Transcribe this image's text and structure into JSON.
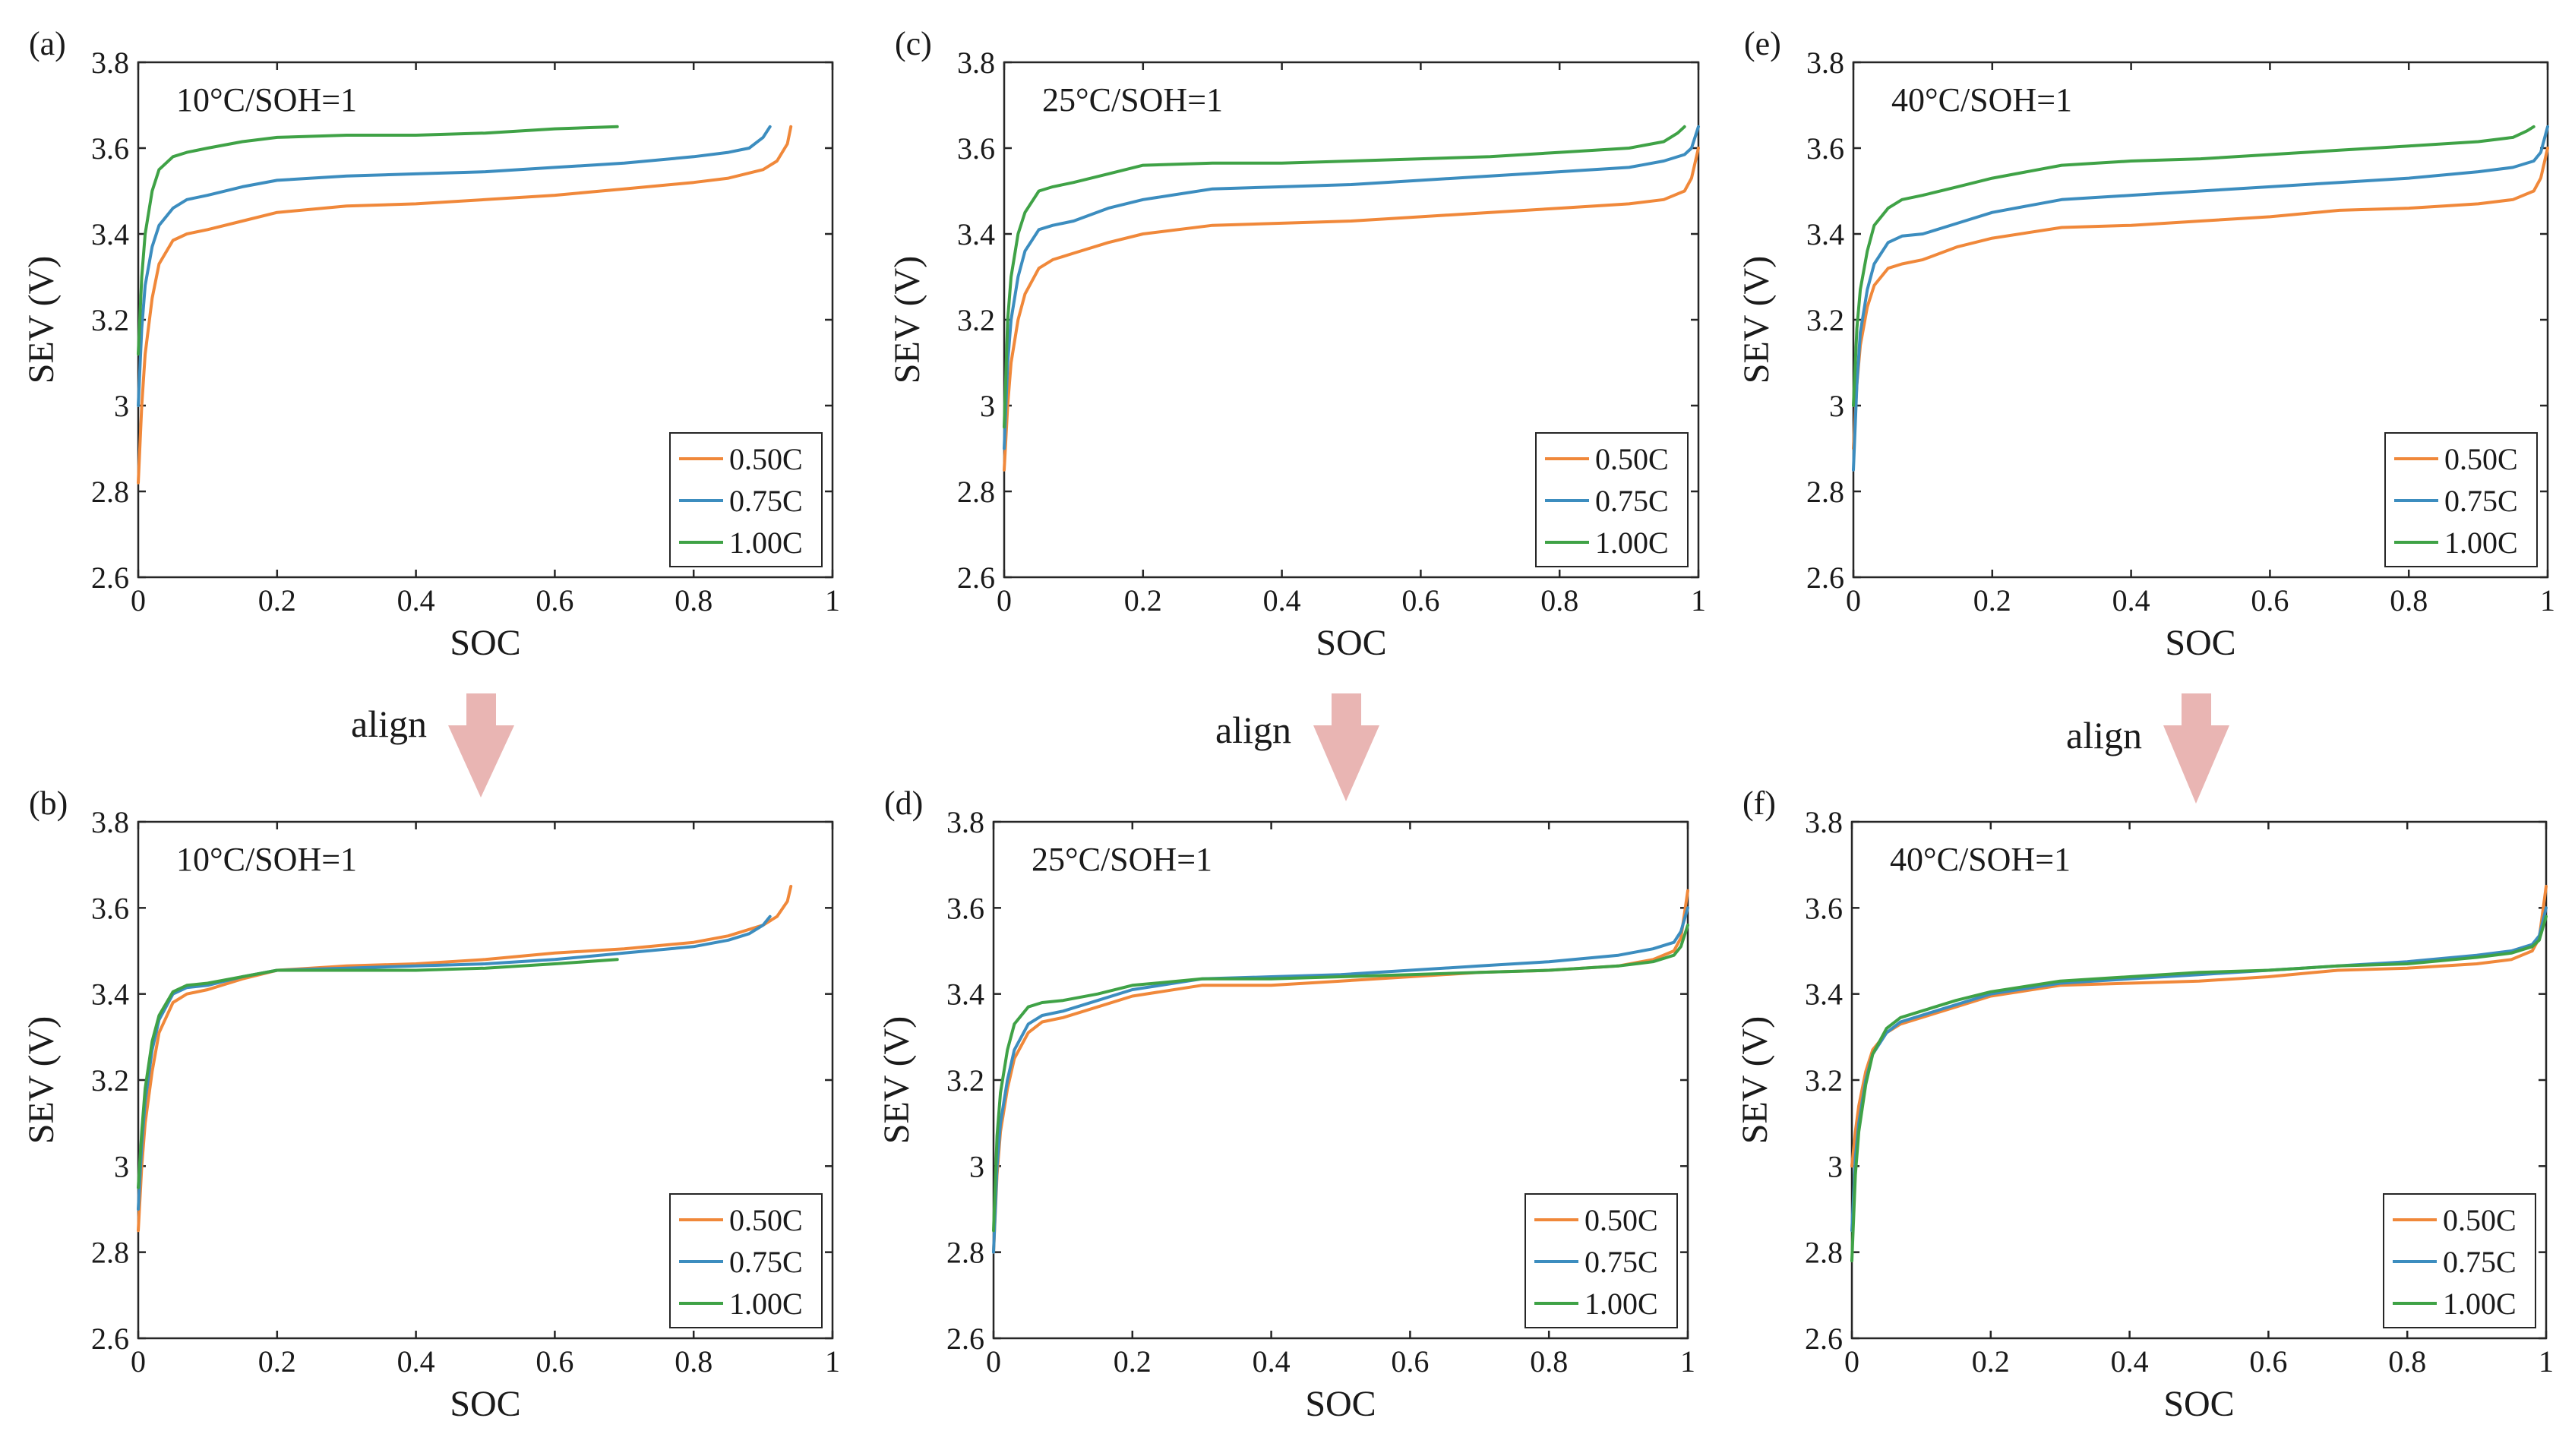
{
  "colors": {
    "c050": "#F0883A",
    "c075": "#3C8DBF",
    "c100": "#3FA246",
    "arrow": "#E9B5B3",
    "axis": "#262626"
  },
  "arrow_text": "align",
  "chart_data": [
    {
      "type": "line",
      "panel": "(a)",
      "annotation": "10°C/SOH=1",
      "xlabel": "SOC",
      "ylabel": "SEV (V)",
      "xlim": [
        0,
        1
      ],
      "ylim": [
        2.6,
        3.8
      ],
      "xticks": [
        "0",
        "0.2",
        "0.4",
        "0.6",
        "0.8",
        "1"
      ],
      "yticks": [
        "2.6",
        "2.8",
        "3",
        "3.2",
        "3.4",
        "3.6",
        "3.8"
      ],
      "legend_position": "bottom-right",
      "series": [
        {
          "name": "0.50C",
          "color": "#F0883A",
          "x": [
            0,
            0.005,
            0.01,
            0.02,
            0.03,
            0.05,
            0.07,
            0.1,
            0.15,
            0.2,
            0.3,
            0.4,
            0.5,
            0.6,
            0.7,
            0.8,
            0.85,
            0.9,
            0.92,
            0.935,
            0.94
          ],
          "y": [
            2.82,
            3.0,
            3.12,
            3.25,
            3.33,
            3.385,
            3.4,
            3.41,
            3.43,
            3.45,
            3.465,
            3.47,
            3.48,
            3.49,
            3.505,
            3.52,
            3.53,
            3.55,
            3.57,
            3.61,
            3.65
          ]
        },
        {
          "name": "0.75C",
          "color": "#3C8DBF",
          "x": [
            0,
            0.005,
            0.01,
            0.02,
            0.03,
            0.05,
            0.07,
            0.1,
            0.15,
            0.2,
            0.3,
            0.4,
            0.5,
            0.6,
            0.7,
            0.8,
            0.85,
            0.88,
            0.9,
            0.91
          ],
          "y": [
            3.0,
            3.18,
            3.28,
            3.37,
            3.42,
            3.46,
            3.48,
            3.49,
            3.51,
            3.525,
            3.535,
            3.54,
            3.545,
            3.555,
            3.565,
            3.58,
            3.59,
            3.6,
            3.625,
            3.65
          ]
        },
        {
          "name": "1.00C",
          "color": "#3FA246",
          "x": [
            0,
            0.005,
            0.01,
            0.02,
            0.03,
            0.05,
            0.07,
            0.1,
            0.15,
            0.2,
            0.3,
            0.4,
            0.5,
            0.6,
            0.69
          ],
          "y": [
            3.12,
            3.3,
            3.4,
            3.5,
            3.55,
            3.58,
            3.59,
            3.6,
            3.615,
            3.625,
            3.63,
            3.63,
            3.635,
            3.645,
            3.65
          ]
        }
      ]
    },
    {
      "type": "line",
      "panel": "(c)",
      "annotation": "25°C/SOH=1",
      "xlabel": "SOC",
      "ylabel": "SEV (V)",
      "xlim": [
        0,
        1
      ],
      "ylim": [
        2.6,
        3.8
      ],
      "xticks": [
        "0",
        "0.2",
        "0.4",
        "0.6",
        "0.8",
        "1"
      ],
      "yticks": [
        "2.6",
        "2.8",
        "3",
        "3.2",
        "3.4",
        "3.6",
        "3.8"
      ],
      "legend_position": "bottom-right",
      "series": [
        {
          "name": "0.50C",
          "color": "#F0883A",
          "x": [
            0,
            0.005,
            0.01,
            0.02,
            0.03,
            0.05,
            0.07,
            0.1,
            0.15,
            0.2,
            0.3,
            0.4,
            0.5,
            0.6,
            0.7,
            0.8,
            0.9,
            0.95,
            0.98,
            0.99,
            1.0
          ],
          "y": [
            2.85,
            3.0,
            3.1,
            3.2,
            3.26,
            3.32,
            3.34,
            3.355,
            3.38,
            3.4,
            3.42,
            3.425,
            3.43,
            3.44,
            3.45,
            3.46,
            3.47,
            3.48,
            3.5,
            3.53,
            3.6
          ]
        },
        {
          "name": "0.75C",
          "color": "#3C8DBF",
          "x": [
            0,
            0.005,
            0.01,
            0.02,
            0.03,
            0.05,
            0.07,
            0.1,
            0.15,
            0.2,
            0.3,
            0.4,
            0.5,
            0.6,
            0.7,
            0.8,
            0.9,
            0.95,
            0.98,
            0.99,
            1.0
          ],
          "y": [
            2.9,
            3.1,
            3.2,
            3.3,
            3.36,
            3.41,
            3.42,
            3.43,
            3.46,
            3.48,
            3.505,
            3.51,
            3.515,
            3.525,
            3.535,
            3.545,
            3.555,
            3.57,
            3.585,
            3.6,
            3.65
          ]
        },
        {
          "name": "1.00C",
          "color": "#3FA246",
          "x": [
            0,
            0.005,
            0.01,
            0.02,
            0.03,
            0.05,
            0.07,
            0.1,
            0.15,
            0.2,
            0.3,
            0.4,
            0.5,
            0.6,
            0.7,
            0.8,
            0.9,
            0.95,
            0.97,
            0.98
          ],
          "y": [
            2.95,
            3.2,
            3.3,
            3.4,
            3.45,
            3.5,
            3.51,
            3.52,
            3.54,
            3.56,
            3.565,
            3.565,
            3.57,
            3.575,
            3.58,
            3.59,
            3.6,
            3.615,
            3.635,
            3.65
          ]
        }
      ]
    },
    {
      "type": "line",
      "panel": "(e)",
      "annotation": "40°C/SOH=1",
      "xlabel": "SOC",
      "ylabel": "SEV (V)",
      "xlim": [
        0,
        1
      ],
      "ylim": [
        2.6,
        3.8
      ],
      "xticks": [
        "0",
        "0.2",
        "0.4",
        "0.6",
        "0.8",
        "1"
      ],
      "yticks": [
        "2.6",
        "2.8",
        "3",
        "3.2",
        "3.4",
        "3.6",
        "3.8"
      ],
      "legend_position": "bottom-right",
      "series": [
        {
          "name": "0.50C",
          "color": "#F0883A",
          "x": [
            0,
            0.005,
            0.01,
            0.02,
            0.03,
            0.05,
            0.07,
            0.1,
            0.15,
            0.2,
            0.3,
            0.4,
            0.5,
            0.6,
            0.7,
            0.8,
            0.9,
            0.95,
            0.98,
            0.99,
            1.0
          ],
          "y": [
            2.9,
            3.05,
            3.14,
            3.23,
            3.28,
            3.32,
            3.33,
            3.34,
            3.37,
            3.39,
            3.415,
            3.42,
            3.43,
            3.44,
            3.455,
            3.46,
            3.47,
            3.48,
            3.5,
            3.53,
            3.6
          ]
        },
        {
          "name": "0.75C",
          "color": "#3C8DBF",
          "x": [
            0,
            0.005,
            0.01,
            0.02,
            0.03,
            0.05,
            0.07,
            0.1,
            0.15,
            0.2,
            0.3,
            0.4,
            0.5,
            0.6,
            0.7,
            0.8,
            0.9,
            0.95,
            0.98,
            0.99,
            1.0
          ],
          "y": [
            2.85,
            3.05,
            3.17,
            3.27,
            3.33,
            3.38,
            3.395,
            3.4,
            3.425,
            3.45,
            3.48,
            3.49,
            3.5,
            3.51,
            3.52,
            3.53,
            3.545,
            3.555,
            3.57,
            3.59,
            3.65
          ]
        },
        {
          "name": "1.00C",
          "color": "#3FA246",
          "x": [
            0,
            0.005,
            0.01,
            0.02,
            0.03,
            0.05,
            0.07,
            0.1,
            0.15,
            0.2,
            0.3,
            0.4,
            0.5,
            0.6,
            0.7,
            0.8,
            0.9,
            0.95,
            0.97,
            0.98
          ],
          "y": [
            3.0,
            3.18,
            3.27,
            3.36,
            3.42,
            3.46,
            3.48,
            3.49,
            3.51,
            3.53,
            3.56,
            3.57,
            3.575,
            3.585,
            3.595,
            3.605,
            3.615,
            3.625,
            3.64,
            3.65
          ]
        }
      ]
    },
    {
      "type": "line",
      "panel": "(b)",
      "annotation": "10°C/SOH=1",
      "xlabel": "SOC",
      "ylabel": "SEV (V)",
      "xlim": [
        0,
        1
      ],
      "ylim": [
        2.6,
        3.8
      ],
      "xticks": [
        "0",
        "0.2",
        "0.4",
        "0.6",
        "0.8",
        "1"
      ],
      "yticks": [
        "2.6",
        "2.8",
        "3",
        "3.2",
        "3.4",
        "3.6",
        "3.8"
      ],
      "legend_position": "bottom-right",
      "series": [
        {
          "name": "0.50C",
          "color": "#F0883A",
          "x": [
            0,
            0.005,
            0.01,
            0.02,
            0.03,
            0.05,
            0.07,
            0.1,
            0.15,
            0.2,
            0.3,
            0.4,
            0.5,
            0.6,
            0.7,
            0.8,
            0.85,
            0.9,
            0.92,
            0.935,
            0.94
          ],
          "y": [
            2.85,
            3.0,
            3.1,
            3.22,
            3.31,
            3.38,
            3.4,
            3.41,
            3.435,
            3.455,
            3.465,
            3.47,
            3.48,
            3.495,
            3.505,
            3.52,
            3.535,
            3.56,
            3.58,
            3.615,
            3.65
          ]
        },
        {
          "name": "0.75C",
          "color": "#3C8DBF",
          "x": [
            0,
            0.005,
            0.01,
            0.02,
            0.03,
            0.05,
            0.07,
            0.1,
            0.15,
            0.2,
            0.3,
            0.4,
            0.5,
            0.6,
            0.7,
            0.8,
            0.85,
            0.88,
            0.9,
            0.91
          ],
          "y": [
            2.9,
            3.05,
            3.15,
            3.27,
            3.34,
            3.4,
            3.415,
            3.42,
            3.44,
            3.455,
            3.46,
            3.465,
            3.47,
            3.48,
            3.495,
            3.51,
            3.525,
            3.54,
            3.56,
            3.58
          ]
        },
        {
          "name": "1.00C",
          "color": "#3FA246",
          "x": [
            0,
            0.005,
            0.01,
            0.02,
            0.03,
            0.05,
            0.07,
            0.1,
            0.15,
            0.2,
            0.3,
            0.4,
            0.5,
            0.6,
            0.69
          ],
          "y": [
            2.95,
            3.08,
            3.18,
            3.29,
            3.35,
            3.405,
            3.42,
            3.425,
            3.44,
            3.455,
            3.455,
            3.455,
            3.46,
            3.47,
            3.48
          ]
        }
      ]
    },
    {
      "type": "line",
      "panel": "(d)",
      "annotation": "25°C/SOH=1",
      "xlabel": "SOC",
      "ylabel": "SEV (V)",
      "xlim": [
        0,
        1
      ],
      "ylim": [
        2.6,
        3.8
      ],
      "xticks": [
        "0",
        "0.2",
        "0.4",
        "0.6",
        "0.8",
        "1"
      ],
      "yticks": [
        "2.6",
        "2.8",
        "3",
        "3.2",
        "3.4",
        "3.6",
        "3.8"
      ],
      "legend_position": "bottom-right",
      "series": [
        {
          "name": "0.50C",
          "color": "#F0883A",
          "x": [
            0,
            0.005,
            0.01,
            0.02,
            0.03,
            0.05,
            0.07,
            0.1,
            0.15,
            0.2,
            0.3,
            0.4,
            0.5,
            0.6,
            0.7,
            0.8,
            0.9,
            0.95,
            0.98,
            0.99,
            1.0
          ],
          "y": [
            2.8,
            2.98,
            3.08,
            3.18,
            3.25,
            3.31,
            3.335,
            3.345,
            3.37,
            3.395,
            3.42,
            3.42,
            3.43,
            3.44,
            3.45,
            3.455,
            3.465,
            3.48,
            3.5,
            3.53,
            3.64
          ]
        },
        {
          "name": "0.75C",
          "color": "#3C8DBF",
          "x": [
            0,
            0.005,
            0.01,
            0.02,
            0.03,
            0.05,
            0.07,
            0.1,
            0.15,
            0.2,
            0.3,
            0.4,
            0.5,
            0.6,
            0.7,
            0.8,
            0.9,
            0.95,
            0.98,
            0.99,
            1.0
          ],
          "y": [
            2.8,
            3.0,
            3.1,
            3.2,
            3.27,
            3.33,
            3.35,
            3.36,
            3.385,
            3.41,
            3.435,
            3.44,
            3.445,
            3.455,
            3.465,
            3.475,
            3.49,
            3.505,
            3.52,
            3.545,
            3.6
          ]
        },
        {
          "name": "1.00C",
          "color": "#3FA246",
          "x": [
            0,
            0.005,
            0.01,
            0.02,
            0.03,
            0.05,
            0.07,
            0.1,
            0.15,
            0.2,
            0.3,
            0.4,
            0.5,
            0.6,
            0.7,
            0.8,
            0.9,
            0.95,
            0.98,
            0.99,
            1.0
          ],
          "y": [
            2.85,
            3.07,
            3.17,
            3.27,
            3.33,
            3.37,
            3.38,
            3.385,
            3.4,
            3.42,
            3.435,
            3.435,
            3.44,
            3.445,
            3.45,
            3.455,
            3.465,
            3.475,
            3.49,
            3.51,
            3.56
          ]
        }
      ]
    },
    {
      "type": "line",
      "panel": "(f)",
      "annotation": "40°C/SOH=1",
      "xlabel": "SOC",
      "ylabel": "SEV (V)",
      "xlim": [
        0,
        1
      ],
      "ylim": [
        2.6,
        3.8
      ],
      "xticks": [
        "0",
        "0.2",
        "0.4",
        "0.6",
        "0.8",
        "1"
      ],
      "yticks": [
        "2.6",
        "2.8",
        "3",
        "3.2",
        "3.4",
        "3.6",
        "3.8"
      ],
      "legend_position": "bottom-right",
      "series": [
        {
          "name": "0.50C",
          "color": "#F0883A",
          "x": [
            0,
            0.005,
            0.01,
            0.02,
            0.03,
            0.05,
            0.07,
            0.1,
            0.15,
            0.2,
            0.3,
            0.4,
            0.5,
            0.6,
            0.7,
            0.8,
            0.9,
            0.95,
            0.98,
            0.99,
            1.0
          ],
          "y": [
            3.0,
            3.08,
            3.14,
            3.22,
            3.27,
            3.31,
            3.33,
            3.345,
            3.37,
            3.395,
            3.42,
            3.425,
            3.43,
            3.44,
            3.455,
            3.46,
            3.47,
            3.48,
            3.5,
            3.53,
            3.65
          ]
        },
        {
          "name": "0.75C",
          "color": "#3C8DBF",
          "x": [
            0,
            0.005,
            0.01,
            0.02,
            0.03,
            0.05,
            0.07,
            0.1,
            0.15,
            0.2,
            0.3,
            0.4,
            0.5,
            0.6,
            0.7,
            0.8,
            0.9,
            0.95,
            0.98,
            0.99,
            1.0
          ],
          "y": [
            2.85,
            3.02,
            3.1,
            3.2,
            3.26,
            3.31,
            3.335,
            3.35,
            3.375,
            3.4,
            3.425,
            3.435,
            3.445,
            3.455,
            3.465,
            3.475,
            3.49,
            3.5,
            3.515,
            3.535,
            3.6
          ]
        },
        {
          "name": "1.00C",
          "color": "#3FA246",
          "x": [
            0,
            0.005,
            0.01,
            0.02,
            0.03,
            0.05,
            0.07,
            0.1,
            0.15,
            0.2,
            0.3,
            0.4,
            0.5,
            0.6,
            0.7,
            0.8,
            0.9,
            0.95,
            0.98,
            0.99,
            1.0
          ],
          "y": [
            2.78,
            2.98,
            3.08,
            3.19,
            3.26,
            3.32,
            3.345,
            3.36,
            3.385,
            3.405,
            3.43,
            3.44,
            3.45,
            3.455,
            3.465,
            3.47,
            3.485,
            3.495,
            3.51,
            3.525,
            3.58
          ]
        }
      ]
    }
  ]
}
